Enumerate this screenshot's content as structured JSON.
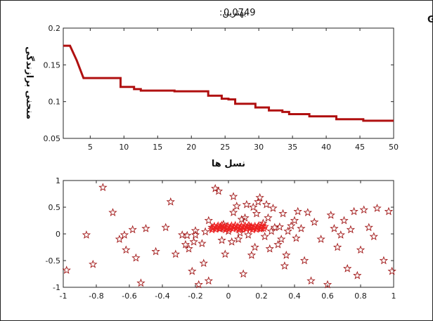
{
  "header": {
    "left_label": "بهترین:",
    "best_value": "0.0749",
    "right_label": "فرایند GA"
  },
  "colors": {
    "line": "#b01010",
    "marker": "#a01515",
    "cluster": "#ee2222",
    "axis": "#262626"
  },
  "chart_data": [
    {
      "type": "line",
      "title": "",
      "xlabel": "نسل ها",
      "ylabel": "منحنی برازندگی",
      "xlim": [
        1,
        50
      ],
      "ylim": [
        0.05,
        0.2
      ],
      "xticks": [
        5,
        10,
        15,
        20,
        25,
        30,
        35,
        40,
        45,
        50
      ],
      "xtick_labels": [
        "5",
        "10",
        "15",
        "20",
        "25",
        "30",
        "35",
        "40",
        "45",
        "50"
      ],
      "yticks": [
        0.05,
        0.1,
        0.15,
        0.2
      ],
      "ytick_labels": [
        "0.05",
        "0.1",
        "0.15",
        "0.2"
      ],
      "grid": false,
      "series": [
        {
          "x": [
            1,
            2,
            3,
            4,
            5,
            6,
            7,
            8,
            9,
            10,
            11,
            12,
            13,
            14,
            15,
            16,
            17,
            18,
            19,
            20,
            21,
            22,
            23,
            24,
            25,
            26,
            27,
            28,
            29,
            30,
            31,
            32,
            33,
            34,
            35,
            36,
            37,
            38,
            39,
            40,
            41,
            42,
            43,
            44,
            45,
            46,
            47,
            48,
            49,
            50
          ],
          "values": [
            0.176,
            0.176,
            0.156,
            0.132,
            0.132,
            0.132,
            0.132,
            0.132,
            0.132,
            0.12,
            0.12,
            0.117,
            0.115,
            0.115,
            0.115,
            0.115,
            0.115,
            0.114,
            0.114,
            0.114,
            0.114,
            0.114,
            0.108,
            0.108,
            0.104,
            0.103,
            0.097,
            0.097,
            0.097,
            0.092,
            0.092,
            0.088,
            0.088,
            0.086,
            0.083,
            0.083,
            0.083,
            0.08,
            0.08,
            0.08,
            0.08,
            0.076,
            0.076,
            0.076,
            0.076,
            0.074,
            0.074,
            0.074,
            0.074,
            0.074
          ],
          "step": true
        }
      ]
    },
    {
      "type": "scatter",
      "title": "",
      "xlim": [
        -1,
        1
      ],
      "ylim": [
        -1,
        1
      ],
      "xticks": [
        -1,
        -0.8,
        -0.6,
        -0.4,
        -0.2,
        0,
        0.2,
        0.4,
        0.6,
        0.8,
        1
      ],
      "xtick_labels": [
        "-1",
        "-0.8",
        "-0.6",
        "-0.4",
        "-0.2",
        "0",
        "0.2",
        "0.4",
        "0.6",
        "0.8",
        "1"
      ],
      "yticks": [
        -1,
        -0.5,
        0,
        0.5,
        1
      ],
      "ytick_labels": [
        "-1",
        "-0.5",
        "0",
        "0.5",
        "1"
      ],
      "grid": false,
      "marker": "star",
      "series": [
        {
          "points": [
            [
              -0.98,
              -0.68
            ],
            [
              -0.86,
              -0.02
            ],
            [
              -0.82,
              -0.57
            ],
            [
              -0.76,
              0.87
            ],
            [
              -0.7,
              0.4
            ],
            [
              -0.66,
              -0.1
            ],
            [
              -0.63,
              -0.02
            ],
            [
              -0.62,
              -0.3
            ],
            [
              -0.58,
              0.08
            ],
            [
              -0.56,
              -0.45
            ],
            [
              -0.53,
              -0.92
            ],
            [
              -0.5,
              0.1
            ],
            [
              -0.44,
              -0.33
            ],
            [
              -0.38,
              0.12
            ],
            [
              -0.35,
              0.6
            ],
            [
              -0.32,
              -0.38
            ],
            [
              -0.28,
              -0.02
            ],
            [
              -0.25,
              -0.03
            ],
            [
              -0.24,
              -0.28
            ],
            [
              -0.22,
              -0.7
            ],
            [
              -0.21,
              -0.15
            ],
            [
              -0.2,
              -0.02
            ],
            [
              -0.2,
              0.06
            ],
            [
              -0.18,
              -0.95
            ],
            [
              -0.16,
              -0.18
            ],
            [
              -0.15,
              -0.55
            ],
            [
              -0.12,
              -0.88
            ],
            [
              -0.1,
              0.12
            ],
            [
              -0.08,
              0.85
            ],
            [
              -0.06,
              0.8
            ],
            [
              -0.05,
              0.1
            ],
            [
              -0.03,
              0.18
            ],
            [
              -0.02,
              -0.38
            ],
            [
              0,
              0.05
            ],
            [
              0.02,
              -0.15
            ],
            [
              0.03,
              0.7
            ],
            [
              0.05,
              0.52
            ],
            [
              0.06,
              -0.1
            ],
            [
              0.08,
              0.27
            ],
            [
              0.09,
              -0.75
            ],
            [
              0.1,
              0.3
            ],
            [
              0.12,
              -0.02
            ],
            [
              0.13,
              0.13
            ],
            [
              0.15,
              0.5
            ],
            [
              0.16,
              -0.25
            ],
            [
              0.17,
              0.38
            ],
            [
              0.18,
              0.6
            ],
            [
              0.19,
              0.68
            ],
            [
              0.2,
              0.1
            ],
            [
              0.22,
              -0.05
            ],
            [
              0.24,
              0.3
            ],
            [
              0.25,
              -0.28
            ],
            [
              0.27,
              0.48
            ],
            [
              0.28,
              0.12
            ],
            [
              0.3,
              -0.2
            ],
            [
              0.31,
              0.13
            ],
            [
              0.33,
              0.38
            ],
            [
              0.34,
              -0.6
            ],
            [
              0.36,
              0.05
            ],
            [
              0.38,
              0.15
            ],
            [
              0.4,
              0.25
            ],
            [
              0.42,
              0.42
            ],
            [
              0.44,
              0.1
            ],
            [
              0.46,
              -0.5
            ],
            [
              0.48,
              0.4
            ],
            [
              0.5,
              -0.88
            ],
            [
              0.52,
              0.22
            ],
            [
              0.56,
              -0.1
            ],
            [
              0.6,
              -0.95
            ],
            [
              0.62,
              0.35
            ],
            [
              0.64,
              0.1
            ],
            [
              0.66,
              -0.25
            ],
            [
              0.68,
              -0.02
            ],
            [
              0.7,
              0.25
            ],
            [
              0.72,
              -0.65
            ],
            [
              0.74,
              0.08
            ],
            [
              0.76,
              0.42
            ],
            [
              0.78,
              -0.78
            ],
            [
              0.8,
              -0.3
            ],
            [
              0.82,
              0.45
            ],
            [
              0.85,
              0.12
            ],
            [
              0.88,
              -0.05
            ],
            [
              0.9,
              0.48
            ],
            [
              0.94,
              -0.5
            ],
            [
              0.97,
              0.42
            ],
            [
              0.99,
              -0.7
            ],
            [
              -0.04,
              -0.12
            ],
            [
              0.07,
              0.02
            ],
            [
              0.14,
              -0.4
            ],
            [
              0.21,
              0.2
            ],
            [
              -0.26,
              -0.2
            ],
            [
              0.26,
              0.05
            ],
            [
              -0.12,
              0.25
            ],
            [
              0.11,
              0.55
            ],
            [
              0.32,
              -0.1
            ],
            [
              0.03,
              0.4
            ],
            [
              0.23,
              0.55
            ],
            [
              -0.14,
              0.04
            ],
            [
              0.35,
              -0.4
            ],
            [
              0.41,
              -0.08
            ]
          ],
          "cluster": {
            "x_start": -0.1,
            "x_end": 0.22,
            "y_band": [
              0.08,
              0.16
            ]
          }
        }
      ]
    }
  ]
}
